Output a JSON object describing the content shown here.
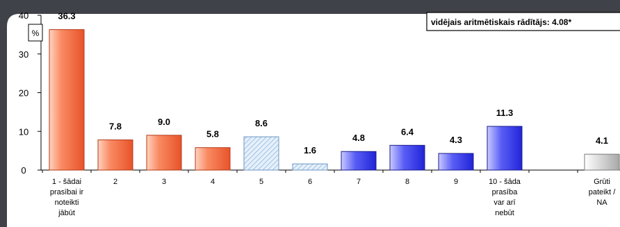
{
  "chart_data": {
    "type": "bar",
    "ylim": [
      0,
      40
    ],
    "yticks": [
      0,
      10,
      20,
      30,
      40
    ],
    "unit": "%",
    "annotation": "vidējais aritmētiskais rādītājs: 4.08*",
    "categories": [
      [
        "1 - šādai",
        "prasībai ir",
        "noteikti",
        "jābūt"
      ],
      [
        "2"
      ],
      [
        "3"
      ],
      [
        "4"
      ],
      [
        "5"
      ],
      [
        "6"
      ],
      [
        "7"
      ],
      [
        "8"
      ],
      [
        "9"
      ],
      [
        "10 - šāda",
        "prasība",
        "var arī",
        "nebūt"
      ],
      [
        ""
      ],
      [
        "Grūti",
        "pateikt /",
        "NA"
      ]
    ],
    "values": [
      36.3,
      7.8,
      9.0,
      5.8,
      8.6,
      1.6,
      4.8,
      6.4,
      4.3,
      11.3,
      null,
      4.1
    ],
    "value_labels": [
      "36.3",
      "7.8",
      "9.0",
      "5.8",
      "8.6",
      "1.6",
      "4.8",
      "6.4",
      "4.3",
      "11.3",
      "",
      "4.1"
    ],
    "bar_styles": [
      "orange",
      "orange",
      "orange",
      "orange",
      "hatched",
      "hatched",
      "blue",
      "blue",
      "blue",
      "blue",
      "none",
      "gray"
    ],
    "colors": {
      "orange": "#f4714a",
      "blue": "#3a3ff0",
      "hatched": "#bcd6ee",
      "gray": "#bdbdbd",
      "plot_bg": "#ffffff",
      "page_bg": "#3f4248"
    }
  }
}
